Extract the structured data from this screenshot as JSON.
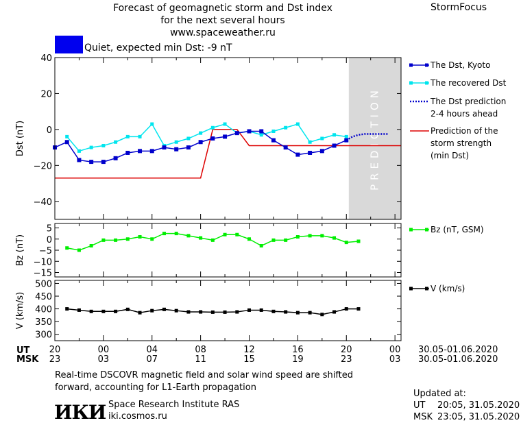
{
  "header": {
    "title_line1": "Forecast of geomagnetic storm and Dst index",
    "title_line2": "for the next several hours",
    "title_line3": "www.spaceweather.ru",
    "brand": "StormFocus"
  },
  "status": {
    "label": "Quiet, expected min Dst: -9 nT",
    "color": "#0000ee"
  },
  "colors": {
    "dst_kyoto": "#0000cc",
    "dst_recovered": "#00e5ee",
    "dst_prediction": "#0000cc",
    "storm_strength": "#dd0000",
    "bz": "#00ee00",
    "v": "#000000",
    "prediction_zone": "#d9d9d9"
  },
  "prediction_zone_label": "PREDICTION",
  "chart_data": [
    {
      "type": "line",
      "ylabel": "Dst (nT)",
      "ylim": [
        -50,
        40
      ],
      "yticks": [
        40,
        20,
        0,
        -20,
        -40
      ],
      "x_unit": "hours since 20:00 UT 30.05.2020",
      "xlim": [
        0,
        28.5
      ],
      "prediction_start_x": 24.2,
      "series": [
        {
          "name": "The Dst, Kyoto",
          "x": [
            0,
            1,
            2,
            3,
            4,
            5,
            6,
            7,
            8,
            9,
            10,
            11,
            12,
            13,
            14,
            15,
            16,
            17,
            18,
            19,
            20,
            21,
            22,
            23,
            24
          ],
          "y": [
            -10,
            -7,
            -17,
            -18,
            -18,
            -16,
            -13,
            -12,
            -12,
            -10,
            -11,
            -10,
            -7,
            -5,
            -4,
            -2,
            -1,
            -1,
            -6,
            -10,
            -14,
            -13,
            -12,
            -9,
            -6
          ]
        },
        {
          "name": "The recovered Dst",
          "x": [
            1,
            2,
            3,
            4,
            5,
            6,
            7,
            8,
            9,
            10,
            11,
            12,
            13,
            14,
            15,
            16,
            17,
            18,
            19,
            20,
            21,
            22,
            23,
            24
          ],
          "y": [
            -4,
            -12,
            -10,
            -9,
            -7,
            -4,
            -4,
            3,
            -9,
            -7,
            -5,
            -2,
            1,
            3,
            -2,
            -1,
            -3,
            -1,
            1,
            3,
            -7,
            -5,
            -3,
            -4
          ]
        },
        {
          "name": "The Dst prediction\n2-4 hours ahead",
          "x": [
            24,
            24.5,
            25,
            25.5,
            26,
            26.5,
            27,
            27.5
          ],
          "y": [
            -6,
            -4,
            -3,
            -2.5,
            -2.5,
            -2.5,
            -2.5,
            -2.5
          ]
        },
        {
          "name": "Prediction of the\nstorm strength\n(min Dst)",
          "x": [
            0,
            12,
            13,
            15,
            16,
            28.5
          ],
          "y": [
            -27,
            -27,
            0,
            0,
            -9,
            -9
          ]
        }
      ]
    },
    {
      "type": "line",
      "ylabel": "Bz (nT)",
      "ylim": [
        -17,
        7
      ],
      "yticks": [
        5,
        0,
        -5,
        -10,
        -15
      ],
      "series": [
        {
          "name": "Bz (nT, GSM)",
          "x": [
            1,
            2,
            3,
            4,
            5,
            6,
            7,
            8,
            9,
            10,
            11,
            12,
            13,
            14,
            15,
            16,
            17,
            18,
            19,
            20,
            21,
            22,
            23,
            24,
            25
          ],
          "y": [
            -4,
            -5,
            -3,
            -0.5,
            -0.5,
            0,
            1,
            0,
            2.5,
            2.5,
            1.5,
            0.5,
            -0.5,
            2,
            2,
            0,
            -3,
            -0.5,
            -0.5,
            1,
            1.5,
            1.5,
            0.5,
            -1.5,
            -1
          ]
        }
      ]
    },
    {
      "type": "line",
      "ylabel": "V (km/s)",
      "ylim": [
        275,
        512
      ],
      "yticks": [
        500,
        450,
        400,
        350,
        300
      ],
      "series": [
        {
          "name": "V (km/s)",
          "x": [
            1,
            2,
            3,
            4,
            5,
            6,
            7,
            8,
            9,
            10,
            11,
            12,
            13,
            14,
            15,
            16,
            17,
            18,
            19,
            20,
            21,
            22,
            23,
            24,
            25
          ],
          "y": [
            400,
            395,
            390,
            390,
            390,
            398,
            385,
            393,
            398,
            393,
            388,
            388,
            387,
            387,
            388,
            395,
            395,
            390,
            388,
            385,
            385,
            378,
            388,
            400,
            400
          ]
        }
      ]
    }
  ],
  "time_axis": {
    "ut_label": "UT",
    "msk_label": "MSK",
    "ut_ticks": [
      "20",
      "00",
      "04",
      "08",
      "12",
      "16",
      "20",
      "00"
    ],
    "msk_ticks": [
      "23",
      "03",
      "07",
      "11",
      "15",
      "19",
      "23",
      "03"
    ],
    "date_range": "30.05-01.06.2020"
  },
  "footer": {
    "note_line1": "Real-time DSCOVR magnetic field and solar wind speed are shifted",
    "note_line2": "forward, accounting for L1-Earth propagation",
    "institute": "Space Research Institute RAS",
    "site": "iki.cosmos.ru",
    "logo": "ИКИ",
    "updated_label": "Updated at:",
    "updated_ut_label": "UT",
    "updated_ut": "20:05, 31.05.2020",
    "updated_msk_label": "MSK",
    "updated_msk": "23:05, 31.05.2020"
  }
}
